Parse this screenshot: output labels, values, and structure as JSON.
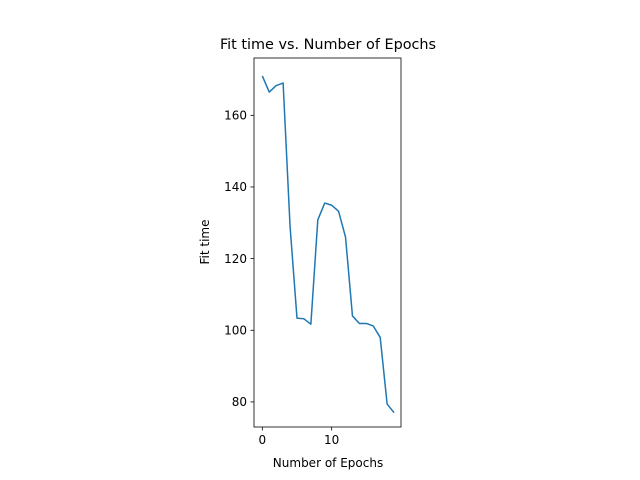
{
  "chart_data": {
    "type": "line",
    "title": "Fit time vs. Number of Epochs",
    "xlabel": "Number of Epochs",
    "ylabel": "Fit time",
    "xlim": [
      -1.2,
      20
    ],
    "ylim": [
      73,
      176
    ],
    "xticks": [
      0,
      10
    ],
    "yticks": [
      80,
      100,
      120,
      140,
      160
    ],
    "grid": false,
    "color": "#1f77b4",
    "series": [
      {
        "x": [
          0,
          1,
          2,
          3,
          4,
          5,
          6,
          7,
          8,
          9,
          10,
          11,
          12,
          13,
          14,
          15,
          16,
          17,
          18,
          19
        ],
        "values": [
          171.0,
          166.5,
          168.3,
          169.0,
          129.0,
          103.4,
          103.2,
          101.7,
          130.8,
          135.5,
          134.9,
          133.2,
          126.0,
          104.0,
          101.9,
          101.9,
          101.2,
          98.0,
          79.4,
          77.0
        ]
      }
    ]
  }
}
